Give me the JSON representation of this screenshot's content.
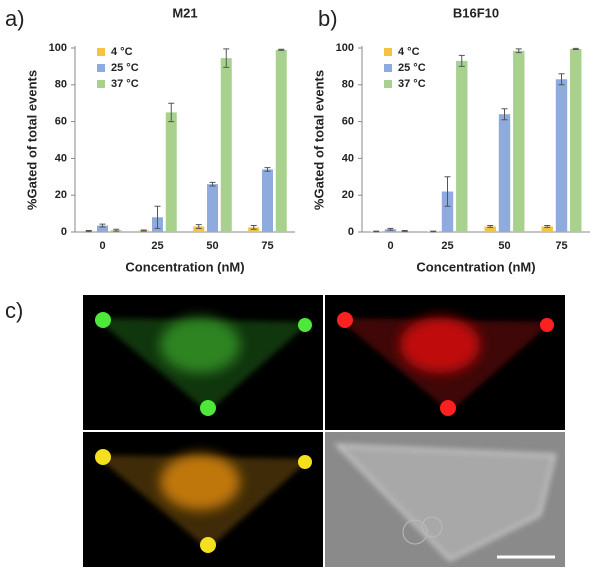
{
  "chart_data": [
    {
      "type": "bar",
      "label": "a)",
      "title": "M21",
      "xlabel": "Concentration (nM)",
      "ylabel": "%Gated of total events",
      "categories": [
        "0",
        "25",
        "50",
        "75"
      ],
      "series": [
        {
          "name": "4 °C",
          "color": "#f5c342",
          "values": [
            0.5,
            0.8,
            3,
            2.5
          ],
          "errors": [
            0.3,
            0.3,
            1,
            1
          ]
        },
        {
          "name": "25 °C",
          "color": "#8faadc",
          "values": [
            3.5,
            8,
            26,
            34
          ],
          "errors": [
            0.8,
            6,
            1,
            1
          ]
        },
        {
          "name": "37 °C",
          "color": "#a9d18e",
          "values": [
            1,
            65,
            94.5,
            99
          ],
          "errors": [
            0.5,
            5,
            5,
            0.3
          ]
        }
      ],
      "ylim": [
        0,
        100
      ],
      "yticks": [
        0,
        20,
        40,
        60,
        80,
        100
      ],
      "grid": false,
      "legend": "top-left"
    },
    {
      "type": "bar",
      "label": "b)",
      "title": "B16F10",
      "xlabel": "Concentration (nM)",
      "ylabel": "%Gated of total events",
      "categories": [
        "0",
        "25",
        "50",
        "75"
      ],
      "series": [
        {
          "name": "4 °C",
          "color": "#f5c342",
          "values": [
            0.3,
            0.3,
            3,
            3
          ],
          "errors": [
            0.2,
            0.2,
            0.5,
            0.5
          ]
        },
        {
          "name": "25 °C",
          "color": "#8faadc",
          "values": [
            1.5,
            22,
            64,
            83
          ],
          "errors": [
            0.5,
            8,
            3,
            3
          ]
        },
        {
          "name": "37 °C",
          "color": "#a9d18e",
          "values": [
            0.5,
            93,
            98.5,
            99.5
          ],
          "errors": [
            0.3,
            3,
            1,
            0.3
          ]
        }
      ],
      "ylim": [
        0,
        100
      ],
      "yticks": [
        0,
        20,
        40,
        60,
        80,
        100
      ],
      "grid": false,
      "legend": "top-left"
    }
  ],
  "image_panel": {
    "label": "c)"
  }
}
